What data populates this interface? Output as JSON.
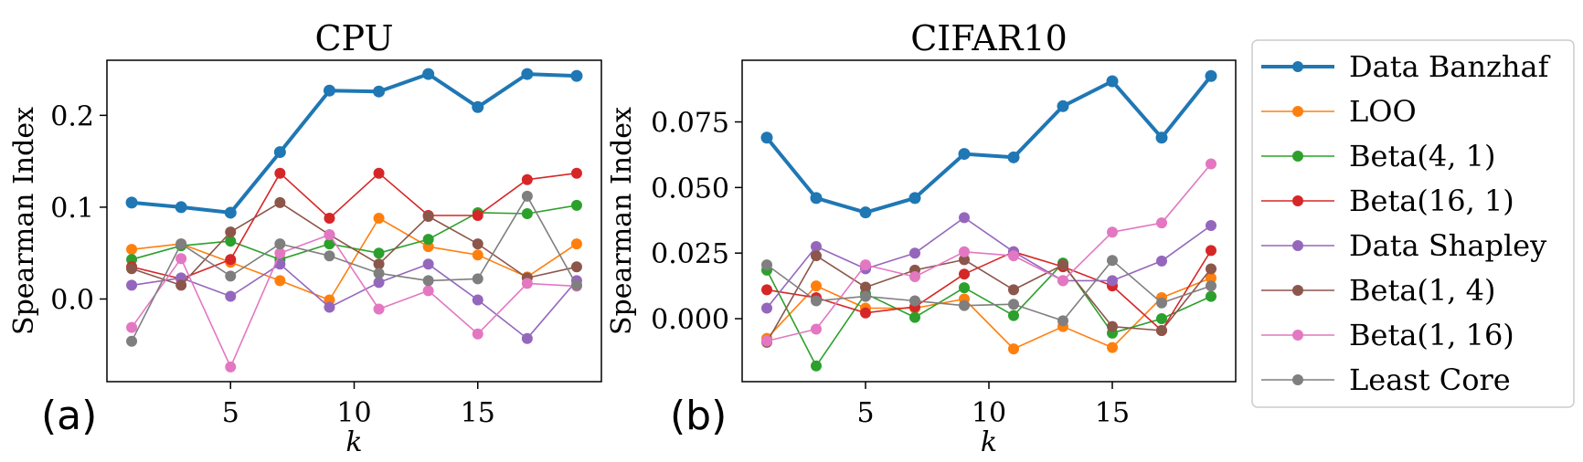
{
  "figure": {
    "legend": [
      {
        "label": "Data Banzhaf",
        "color": "#1f77b4"
      },
      {
        "label": "LOO",
        "color": "#ff7f0e"
      },
      {
        "label": "Beta(4, 1)",
        "color": "#2ca02c"
      },
      {
        "label": "Beta(16, 1)",
        "color": "#d62728"
      },
      {
        "label": "Data Shapley",
        "color": "#9467bd"
      },
      {
        "label": "Beta(1, 4)",
        "color": "#8c564b"
      },
      {
        "label": "Beta(1, 16)",
        "color": "#e377c2"
      },
      {
        "label": "Least Core",
        "color": "#7f7f7f"
      }
    ]
  },
  "chart_data": [
    {
      "type": "line",
      "title": "CPU",
      "panel_label": "(a)",
      "xlabel": "k",
      "ylabel": "Spearman Index",
      "x": [
        1,
        3,
        5,
        7,
        9,
        11,
        13,
        15,
        17,
        19
      ],
      "xlim": [
        0,
        20
      ],
      "ylim": [
        -0.09,
        0.26
      ],
      "xticks": [
        5,
        10,
        15
      ],
      "xtick_labels": [
        "5",
        "10",
        "15"
      ],
      "yticks": [
        0.0,
        0.1,
        0.2
      ],
      "ytick_labels": [
        "0.0",
        "0.1",
        "0.2"
      ],
      "grid": false,
      "series": [
        {
          "name": "Data Banzhaf",
          "color": "#1f77b4",
          "values": [
            0.105,
            0.1,
            0.094,
            0.16,
            0.227,
            0.226,
            0.245,
            0.209,
            0.245,
            0.243
          ]
        },
        {
          "name": "LOO",
          "color": "#ff7f0e",
          "values": [
            0.054,
            0.06,
            0.04,
            0.02,
            -0.001,
            0.088,
            0.057,
            0.048,
            0.024,
            0.06
          ]
        },
        {
          "name": "Beta(4, 1)",
          "color": "#2ca02c",
          "values": [
            0.043,
            0.058,
            0.063,
            0.043,
            0.06,
            0.05,
            0.065,
            0.094,
            0.093,
            0.102
          ]
        },
        {
          "name": "Beta(16, 1)",
          "color": "#d62728",
          "values": [
            0.035,
            0.022,
            0.043,
            0.137,
            0.088,
            0.137,
            0.091,
            0.091,
            0.13,
            0.137
          ]
        },
        {
          "name": "Data Shapley",
          "color": "#9467bd",
          "values": [
            0.015,
            0.023,
            0.003,
            0.038,
            -0.009,
            0.018,
            0.038,
            -0.001,
            -0.043,
            0.02
          ]
        },
        {
          "name": "Beta(1, 4)",
          "color": "#8c564b",
          "values": [
            0.033,
            0.015,
            0.073,
            0.105,
            0.07,
            0.038,
            0.09,
            0.06,
            0.023,
            0.035
          ]
        },
        {
          "name": "Beta(1, 16)",
          "color": "#e377c2",
          "values": [
            -0.031,
            0.044,
            -0.074,
            0.05,
            0.07,
            -0.011,
            0.009,
            -0.038,
            0.017,
            0.014
          ]
        },
        {
          "name": "Least Core",
          "color": "#7f7f7f",
          "values": [
            -0.046,
            0.06,
            0.025,
            0.06,
            0.047,
            0.028,
            0.02,
            0.022,
            0.112,
            0.015
          ]
        }
      ]
    },
    {
      "type": "line",
      "title": "CIFAR10",
      "panel_label": "(b)",
      "xlabel": "k",
      "ylabel": "Spearman Index",
      "x": [
        1,
        3,
        5,
        7,
        9,
        11,
        13,
        15,
        17,
        19
      ],
      "xlim": [
        0,
        20
      ],
      "ylim": [
        -0.024,
        0.0985
      ],
      "xticks": [
        5,
        10,
        15
      ],
      "xtick_labels": [
        "5",
        "10",
        "15"
      ],
      "yticks": [
        0.0,
        0.025,
        0.05,
        0.075
      ],
      "ytick_labels": [
        "0.000",
        "0.025",
        "0.050",
        "0.075"
      ],
      "grid": false,
      "series": [
        {
          "name": "Data Banzhaf",
          "color": "#1f77b4",
          "values": [
            0.069,
            0.046,
            0.0405,
            0.046,
            0.0628,
            0.0615,
            0.081,
            0.0905,
            0.069,
            0.0925
          ]
        },
        {
          "name": "LOO",
          "color": "#ff7f0e",
          "values": [
            -0.0075,
            0.0125,
            0.004,
            0.004,
            0.0075,
            -0.0115,
            -0.003,
            -0.011,
            0.008,
            0.0155
          ]
        },
        {
          "name": "Beta(4, 1)",
          "color": "#2ca02c",
          "values": [
            0.0185,
            -0.018,
            0.0095,
            0.0005,
            0.0118,
            0.0012,
            0.0212,
            -0.0055,
            0.0,
            0.0085
          ]
        },
        {
          "name": "Beta(16, 1)",
          "color": "#d62728",
          "values": [
            0.011,
            0.008,
            0.0022,
            0.0045,
            0.017,
            0.0255,
            0.0198,
            0.0125,
            -0.0045,
            0.026
          ]
        },
        {
          "name": "Data Shapley",
          "color": "#9467bd",
          "values": [
            0.004,
            0.0275,
            0.019,
            0.025,
            0.0385,
            0.0255,
            0.0145,
            0.0145,
            0.022,
            0.0355
          ]
        },
        {
          "name": "Beta(1, 4)",
          "color": "#8c564b",
          "values": [
            -0.009,
            0.024,
            0.012,
            0.0185,
            0.0225,
            0.011,
            0.0205,
            -0.003,
            -0.0045,
            0.019
          ]
        },
        {
          "name": "Beta(1, 16)",
          "color": "#e377c2",
          "values": [
            -0.0085,
            -0.004,
            0.0205,
            0.016,
            0.0255,
            0.024,
            0.0145,
            0.033,
            0.0365,
            0.059
          ]
        },
        {
          "name": "Least Core",
          "color": "#7f7f7f",
          "values": [
            0.0205,
            0.0068,
            0.0085,
            0.0068,
            0.005,
            0.0055,
            -0.0008,
            0.0222,
            0.006,
            0.0125
          ]
        }
      ]
    }
  ]
}
